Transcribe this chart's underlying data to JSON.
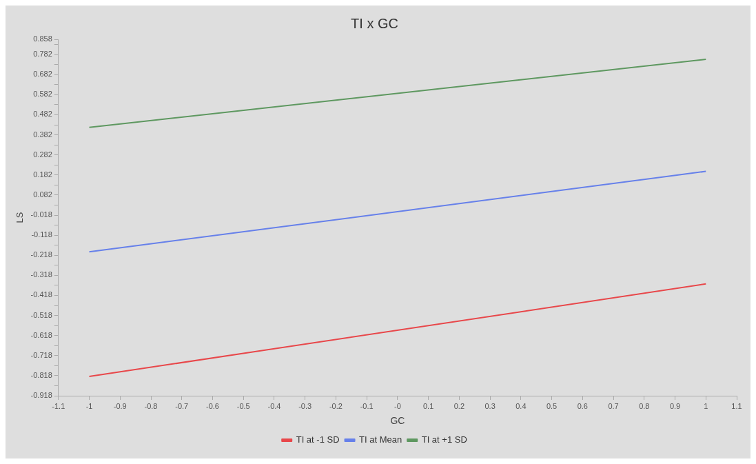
{
  "chart_data": {
    "type": "line",
    "title": "TI x GC",
    "xlabel": "GC",
    "ylabel": "LS",
    "x": [
      -1,
      1
    ],
    "series": [
      {
        "name": "TI at -1 SD",
        "color": "#e8474a",
        "values": [
          -0.822,
          -0.361
        ]
      },
      {
        "name": "TI at Mean",
        "color": "#6680ea",
        "values": [
          -0.201,
          0.2
        ]
      },
      {
        "name": "TI at +1 SD",
        "color": "#5e9860",
        "values": [
          0.419,
          0.758
        ]
      }
    ],
    "xlim": [
      -1.1,
      1.1
    ],
    "xticks": [
      -1.1,
      -1,
      -0.9,
      -0.8,
      -0.7,
      -0.6,
      -0.5,
      -0.4,
      -0.3,
      -0.2,
      -0.1,
      {
        "value": 0,
        "label": "-0"
      },
      0.1,
      0.2,
      0.3,
      0.4,
      0.5,
      0.6,
      0.7,
      0.8,
      0.9,
      1,
      1.1
    ],
    "ylim": [
      -0.918,
      0.858
    ],
    "yticks": [
      0.858,
      {
        "value": 0.832,
        "label": null
      },
      0.782,
      {
        "value": 0.732,
        "label": null
      },
      0.682,
      {
        "value": 0.632,
        "label": null
      },
      0.582,
      {
        "value": 0.532,
        "label": null
      },
      0.482,
      {
        "value": 0.432,
        "label": null
      },
      0.382,
      {
        "value": 0.332,
        "label": null
      },
      0.282,
      {
        "value": 0.232,
        "label": null
      },
      0.182,
      {
        "value": 0.132,
        "label": null
      },
      0.082,
      {
        "value": 0.032,
        "label": null
      },
      -0.018,
      {
        "value": -0.068,
        "label": null
      },
      -0.118,
      {
        "value": -0.168,
        "label": null
      },
      -0.218,
      {
        "value": -0.268,
        "label": null
      },
      -0.318,
      {
        "value": -0.368,
        "label": null
      },
      -0.418,
      {
        "value": -0.468,
        "label": null
      },
      -0.518,
      {
        "value": -0.568,
        "label": null
      },
      -0.618,
      {
        "value": -0.668,
        "label": null
      },
      -0.718,
      {
        "value": -0.768,
        "label": null
      },
      -0.818,
      {
        "value": -0.868,
        "label": null
      },
      -0.918
    ],
    "grid": false,
    "legend": "bottom",
    "marker": "none",
    "line_style": "solid"
  }
}
